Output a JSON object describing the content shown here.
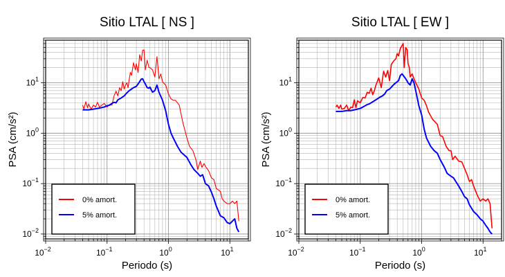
{
  "chart_data": [
    {
      "type": "line",
      "title": "Sitio LTAL [ NS ]",
      "xlabel": "Periodo (s)",
      "ylabel": "PSA (cm/s²)",
      "xscale": "log",
      "yscale": "log",
      "xlim": [
        0.01,
        20
      ],
      "ylim": [
        0.008,
        70
      ],
      "grid": true,
      "legend_position": "bottom-left",
      "x_ticks": [
        {
          "value": 0.01,
          "base": "10",
          "exp": "−2"
        },
        {
          "value": 0.1,
          "base": "10",
          "exp": "−1"
        },
        {
          "value": 1,
          "base": "10",
          "exp": "0"
        },
        {
          "value": 10,
          "base": "10",
          "exp": "1"
        }
      ],
      "y_ticks": [
        {
          "value": 0.01,
          "base": "10",
          "exp": "−2"
        },
        {
          "value": 0.1,
          "base": "10",
          "exp": "−1"
        },
        {
          "value": 1,
          "base": "10",
          "exp": "0"
        },
        {
          "value": 10,
          "base": "10",
          "exp": "1"
        }
      ],
      "series": [
        {
          "name": "0% amort.",
          "color": "#ff0000",
          "width": 1.1,
          "x": [
            0.04,
            0.042,
            0.045,
            0.048,
            0.05,
            0.055,
            0.06,
            0.065,
            0.07,
            0.075,
            0.08,
            0.09,
            0.1,
            0.11,
            0.12,
            0.13,
            0.14,
            0.15,
            0.16,
            0.17,
            0.18,
            0.19,
            0.2,
            0.21,
            0.22,
            0.23,
            0.24,
            0.25,
            0.27,
            0.29,
            0.3,
            0.32,
            0.34,
            0.36,
            0.38,
            0.4,
            0.42,
            0.45,
            0.48,
            0.5,
            0.55,
            0.6,
            0.65,
            0.7,
            0.75,
            0.8,
            0.9,
            1.0,
            1.1,
            1.2,
            1.3,
            1.5,
            1.7,
            2.0,
            2.2,
            2.5,
            2.8,
            3.0,
            3.3,
            3.5,
            3.8,
            4.0,
            4.5,
            5.0,
            5.5,
            6.0,
            6.5,
            7.0,
            7.5,
            8.0,
            9.0,
            10.0,
            11.0,
            12.0,
            13.0,
            14.0
          ],
          "y": [
            3.6,
            3.0,
            4.2,
            3.2,
            3.8,
            3.0,
            3.6,
            3.3,
            4.1,
            3.3,
            3.5,
            3.9,
            3.3,
            3.7,
            3.6,
            5.5,
            6.8,
            5.5,
            8.0,
            7.0,
            10.5,
            7.5,
            9.0,
            10.0,
            8.0,
            12.0,
            16.0,
            14.0,
            25.0,
            18.0,
            24.0,
            16.0,
            36.0,
            27.0,
            44.0,
            45.0,
            18.0,
            28.0,
            20.0,
            20.0,
            18.0,
            13.0,
            33.0,
            12.0,
            15.0,
            10.5,
            9.0,
            6.0,
            4.8,
            4.5,
            4.5,
            3.6,
            1.7,
            0.8,
            0.55,
            0.45,
            0.3,
            0.19,
            0.28,
            0.21,
            0.25,
            0.22,
            0.18,
            0.13,
            0.12,
            0.08,
            0.075,
            0.07,
            0.05,
            0.045,
            0.04,
            0.04,
            0.045,
            0.04,
            0.045,
            0.018
          ]
        },
        {
          "name": "5% amort.",
          "color": "#0000ff",
          "width": 2,
          "x": [
            0.04,
            0.05,
            0.06,
            0.07,
            0.08,
            0.09,
            0.1,
            0.11,
            0.12,
            0.13,
            0.14,
            0.15,
            0.17,
            0.19,
            0.21,
            0.23,
            0.25,
            0.27,
            0.3,
            0.33,
            0.36,
            0.38,
            0.4,
            0.42,
            0.45,
            0.48,
            0.5,
            0.55,
            0.6,
            0.65,
            0.7,
            0.8,
            0.9,
            1.0,
            1.1,
            1.2,
            1.4,
            1.6,
            1.8,
            2.0,
            2.3,
            2.6,
            3.0,
            3.3,
            3.6,
            4.0,
            4.5,
            5.0,
            5.5,
            6.0,
            7.0,
            8.0,
            9.0,
            10.0,
            11.0,
            12.0,
            13.0,
            14.0
          ],
          "y": [
            2.9,
            2.9,
            3.0,
            3.1,
            3.2,
            3.3,
            3.5,
            3.6,
            3.9,
            4.1,
            4.0,
            4.6,
            5.0,
            5.5,
            6.3,
            7.0,
            7.5,
            8.0,
            8.5,
            10.0,
            11.8,
            12.0,
            10.5,
            9.5,
            8.0,
            7.8,
            8.2,
            6.5,
            7.0,
            9.0,
            6.5,
            4.5,
            2.8,
            1.5,
            1.0,
            0.8,
            0.55,
            0.42,
            0.37,
            0.33,
            0.24,
            0.19,
            0.16,
            0.14,
            0.15,
            0.1,
            0.09,
            0.068,
            0.05,
            0.036,
            0.023,
            0.021,
            0.017,
            0.016,
            0.018,
            0.02,
            0.013,
            0.011
          ]
        }
      ]
    },
    {
      "type": "line",
      "title": "Sitio LTAL [ EW ]",
      "xlabel": "Periodo (s)",
      "ylabel": "PSA (cm/s²)",
      "xscale": "log",
      "yscale": "log",
      "xlim": [
        0.01,
        20
      ],
      "ylim": [
        0.008,
        70
      ],
      "grid": true,
      "legend_position": "bottom-left",
      "x_ticks": [
        {
          "value": 0.01,
          "base": "10",
          "exp": "−2"
        },
        {
          "value": 0.1,
          "base": "10",
          "exp": "−1"
        },
        {
          "value": 1,
          "base": "10",
          "exp": "0"
        },
        {
          "value": 10,
          "base": "10",
          "exp": "1"
        }
      ],
      "y_ticks": [
        {
          "value": 0.01,
          "base": "10",
          "exp": "−2"
        },
        {
          "value": 0.1,
          "base": "10",
          "exp": "−1"
        },
        {
          "value": 1,
          "base": "10",
          "exp": "0"
        },
        {
          "value": 10,
          "base": "10",
          "exp": "1"
        }
      ],
      "series": [
        {
          "name": "0% amort.",
          "color": "#ff0000",
          "width": 1.6,
          "x": [
            0.04,
            0.042,
            0.045,
            0.048,
            0.05,
            0.055,
            0.06,
            0.065,
            0.07,
            0.075,
            0.08,
            0.085,
            0.09,
            0.1,
            0.11,
            0.12,
            0.13,
            0.14,
            0.15,
            0.16,
            0.17,
            0.18,
            0.2,
            0.22,
            0.24,
            0.26,
            0.28,
            0.3,
            0.32,
            0.35,
            0.38,
            0.4,
            0.42,
            0.45,
            0.48,
            0.5,
            0.52,
            0.55,
            0.58,
            0.6,
            0.63,
            0.65,
            0.7,
            0.75,
            0.8,
            0.9,
            1.0,
            1.1,
            1.2,
            1.3,
            1.5,
            1.8,
            2.0,
            2.2,
            2.5,
            2.8,
            3.0,
            3.2,
            3.5,
            4.0,
            4.5,
            5.0,
            5.5,
            6.0,
            6.5,
            7.0,
            8.0,
            9.0,
            10.0,
            11.0,
            12.0,
            13.0,
            14.0
          ],
          "y": [
            3.3,
            3.6,
            3.1,
            3.6,
            3.0,
            3.1,
            3.6,
            2.8,
            3.3,
            3.2,
            4.6,
            3.2,
            4.4,
            4.0,
            5.1,
            5.0,
            6.5,
            6.2,
            7.8,
            5.8,
            7.0,
            9.0,
            12.5,
            8.0,
            17.0,
            13.0,
            17.5,
            11.0,
            23.0,
            27.0,
            30.0,
            38.0,
            34.0,
            48.0,
            55.0,
            60.0,
            20.0,
            50.0,
            45.0,
            24.0,
            20.0,
            13.0,
            15.0,
            12.0,
            10.0,
            7.5,
            5.0,
            4.5,
            3.5,
            2.6,
            1.9,
            1.5,
            0.9,
            0.85,
            0.55,
            0.45,
            0.45,
            0.3,
            0.35,
            0.28,
            0.27,
            0.2,
            0.15,
            0.11,
            0.12,
            0.09,
            0.06,
            0.045,
            0.05,
            0.045,
            0.05,
            0.04,
            0.013
          ]
        },
        {
          "name": "5% amort.",
          "color": "#0000ff",
          "width": 2,
          "x": [
            0.04,
            0.05,
            0.06,
            0.07,
            0.08,
            0.09,
            0.1,
            0.11,
            0.12,
            0.13,
            0.14,
            0.15,
            0.17,
            0.19,
            0.21,
            0.23,
            0.25,
            0.27,
            0.3,
            0.33,
            0.36,
            0.38,
            0.4,
            0.42,
            0.45,
            0.48,
            0.5,
            0.55,
            0.6,
            0.65,
            0.7,
            0.75,
            0.8,
            0.9,
            1.0,
            1.1,
            1.2,
            1.4,
            1.6,
            1.8,
            2.0,
            2.3,
            2.6,
            3.0,
            3.3,
            3.6,
            4.0,
            4.5,
            5.0,
            5.5,
            6.0,
            7.0,
            8.0,
            9.0,
            10.0,
            11.0,
            12.0,
            13.0,
            14.0
          ],
          "y": [
            2.7,
            2.7,
            2.8,
            2.8,
            2.9,
            3.0,
            3.1,
            3.3,
            3.5,
            3.7,
            3.8,
            4.0,
            4.4,
            4.8,
            5.2,
            5.5,
            6.0,
            7.0,
            7.5,
            8.5,
            9.5,
            10.0,
            10.5,
            11.0,
            14.0,
            15.0,
            14.0,
            12.0,
            10.0,
            9.0,
            12.0,
            10.0,
            7.0,
            3.5,
            2.3,
            1.2,
            0.8,
            0.55,
            0.45,
            0.4,
            0.3,
            0.22,
            0.16,
            0.14,
            0.13,
            0.11,
            0.09,
            0.07,
            0.055,
            0.05,
            0.038,
            0.028,
            0.024,
            0.02,
            0.018,
            0.015,
            0.013,
            0.011,
            0.01
          ]
        }
      ]
    }
  ]
}
